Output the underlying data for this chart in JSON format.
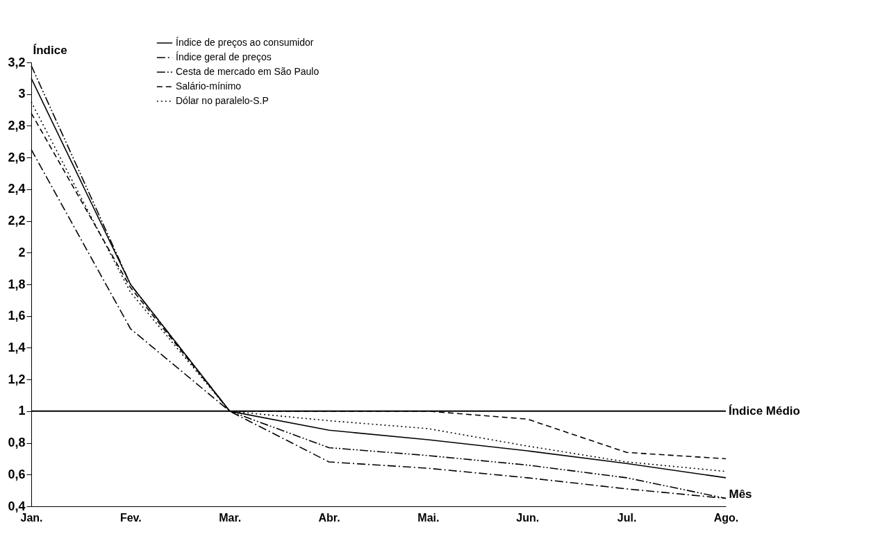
{
  "chart_data": {
    "type": "line",
    "xlabel": "Mês",
    "ylabel": "Índice",
    "categories": [
      "Jan.",
      "Fev.",
      "Mar.",
      "Abr.",
      "Mai.",
      "Jun.",
      "Jul.",
      "Ago."
    ],
    "series": [
      {
        "name": "Índice de preços ao consumidor",
        "color": "#000000",
        "line_style": "solid",
        "values": [
          3.1,
          1.8,
          1,
          0.88,
          0.82,
          0.75,
          0.67,
          0.58
        ]
      },
      {
        "name": "Índice geral de preços",
        "color": "#000000",
        "line_style": "dashdot",
        "values": [
          2.65,
          1.52,
          1,
          0.68,
          0.64,
          0.58,
          0.51,
          0.45
        ]
      },
      {
        "name": "Cesta de mercado em São Paulo",
        "color": "#000000",
        "line_style": "dashdotdot",
        "values": [
          3.18,
          1.8,
          1,
          0.77,
          0.72,
          0.66,
          0.58,
          0.45
        ]
      },
      {
        "name": "Salário-mínimo",
        "color": "#000000",
        "line_style": "dashed",
        "values": [
          2.88,
          1.78,
          1,
          1,
          1,
          0.95,
          0.74,
          0.7
        ]
      },
      {
        "name": "Dólar no paralelo-S.P",
        "color": "#000000",
        "line_style": "dotted",
        "values": [
          2.95,
          1.75,
          1,
          0.94,
          0.89,
          0.78,
          0.68,
          0.62
        ]
      }
    ],
    "ylim": [
      0.4,
      3.2
    ],
    "yticks": [
      {
        "value": 0.4,
        "label": "0,4"
      },
      {
        "value": 0.6,
        "label": "0,6"
      },
      {
        "value": 0.8,
        "label": "0,8"
      },
      1,
      {
        "value": 1.2,
        "label": "1,2"
      },
      {
        "value": 1.4,
        "label": "1,4"
      },
      {
        "value": 1.6,
        "label": "1,6"
      },
      {
        "value": 1.8,
        "label": "1,8"
      },
      2,
      {
        "value": 2.2,
        "label": "2,2"
      },
      {
        "value": 2.4,
        "label": "2,4"
      },
      {
        "value": 2.6,
        "label": "2,6"
      },
      {
        "value": 2.8,
        "label": "2,8"
      },
      3,
      {
        "value": 3.2,
        "label": "3,2"
      }
    ],
    "ref_lines": [
      {
        "axis": "y",
        "value": 1,
        "label": "Índice Médio",
        "color": "#000000",
        "line_style": "solid"
      }
    ],
    "grid": false,
    "legend": "top left"
  }
}
